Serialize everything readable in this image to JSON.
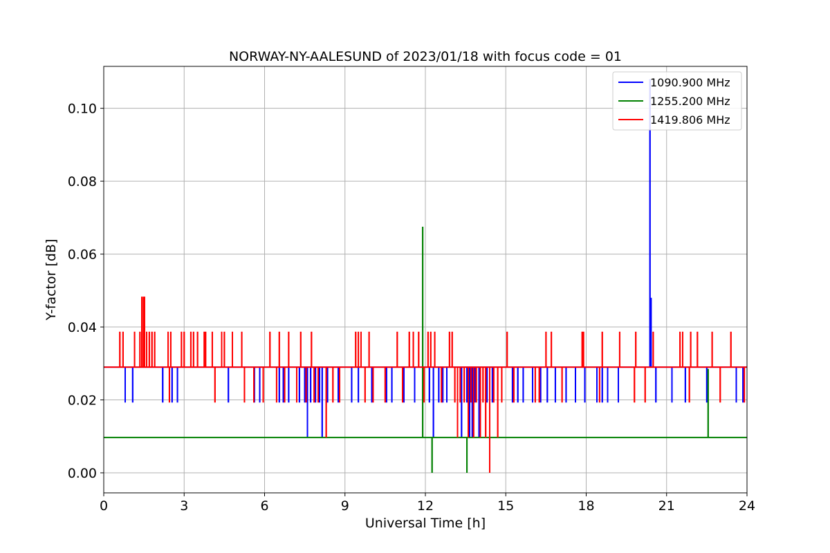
{
  "chart_data": {
    "type": "line",
    "title": "NORWAY-NY-AALESUND of 2023/01/18 with focus code = 01",
    "xlabel": "Universal Time [h]",
    "ylabel": "Y-factor [dB]",
    "xlim": [
      0,
      24
    ],
    "ylim": [
      -0.0055,
      0.1115
    ],
    "x_ticks": [
      0,
      3,
      6,
      9,
      12,
      15,
      18,
      21,
      24
    ],
    "x_tick_labels": [
      "0",
      "3",
      "6",
      "9",
      "12",
      "15",
      "18",
      "21",
      "24"
    ],
    "y_ticks": [
      0.0,
      0.02,
      0.04,
      0.06,
      0.08,
      0.1
    ],
    "y_tick_labels": [
      "0.00",
      "0.02",
      "0.04",
      "0.06",
      "0.08",
      "0.10"
    ],
    "grid": true,
    "legend_position": "top-right",
    "series": [
      {
        "name": "1090.900 MHz",
        "color": "#0000ff",
        "baseline": 0.029,
        "spikes": [
          [
            0.8,
            0.0193
          ],
          [
            1.08,
            0.0193
          ],
          [
            2.2,
            0.0193
          ],
          [
            2.55,
            0.0193
          ],
          [
            2.75,
            0.0193
          ],
          [
            4.65,
            0.0193
          ],
          [
            5.62,
            0.0193
          ],
          [
            5.82,
            0.0193
          ],
          [
            6.55,
            0.0193
          ],
          [
            6.7,
            0.0193
          ],
          [
            6.9,
            0.0193
          ],
          [
            7.3,
            0.0193
          ],
          [
            7.5,
            0.0193
          ],
          [
            7.6,
            0.0097
          ],
          [
            7.72,
            0.0193
          ],
          [
            7.9,
            0.0193
          ],
          [
            8.05,
            0.0193
          ],
          [
            8.15,
            0.0097
          ],
          [
            8.35,
            0.0193
          ],
          [
            8.75,
            0.0193
          ],
          [
            9.25,
            0.0193
          ],
          [
            9.5,
            0.0193
          ],
          [
            10.0,
            0.0193
          ],
          [
            10.55,
            0.0193
          ],
          [
            10.75,
            0.0193
          ],
          [
            11.2,
            0.0193
          ],
          [
            11.6,
            0.0193
          ],
          [
            12.15,
            0.0193
          ],
          [
            12.3,
            0.0097
          ],
          [
            12.5,
            0.0193
          ],
          [
            12.65,
            0.0193
          ],
          [
            12.8,
            0.0193
          ],
          [
            13.35,
            0.0097
          ],
          [
            13.55,
            0.0193
          ],
          [
            13.65,
            0.0097
          ],
          [
            13.75,
            0.0097
          ],
          [
            13.85,
            0.0193
          ],
          [
            14.0,
            0.0097
          ],
          [
            14.3,
            0.0193
          ],
          [
            14.5,
            0.0193
          ],
          [
            15.25,
            0.0193
          ],
          [
            15.45,
            0.0193
          ],
          [
            15.65,
            0.0193
          ],
          [
            16.0,
            0.0193
          ],
          [
            16.3,
            0.0193
          ],
          [
            16.55,
            0.0193
          ],
          [
            16.85,
            0.0193
          ],
          [
            17.25,
            0.0193
          ],
          [
            17.6,
            0.0193
          ],
          [
            17.95,
            0.0193
          ],
          [
            18.4,
            0.0193
          ],
          [
            18.6,
            0.0193
          ],
          [
            18.8,
            0.0193
          ],
          [
            19.2,
            0.0193
          ],
          [
            20.38,
            0.108
          ],
          [
            20.42,
            0.048
          ],
          [
            20.6,
            0.0193
          ],
          [
            21.2,
            0.0193
          ],
          [
            21.7,
            0.0193
          ],
          [
            22.5,
            0.0193
          ],
          [
            23.6,
            0.0193
          ],
          [
            23.85,
            0.0193
          ]
        ]
      },
      {
        "name": "1255.200 MHz",
        "color": "#008000",
        "baseline": 0.0097,
        "spikes": [
          [
            11.9,
            0.0675
          ],
          [
            12.25,
            0.0
          ],
          [
            13.55,
            0.0
          ],
          [
            22.55,
            0.0285
          ]
        ]
      },
      {
        "name": "1419.806 MHz",
        "color": "#ff0000",
        "baseline": 0.029,
        "spikes": [
          [
            0.6,
            0.0387
          ],
          [
            0.72,
            0.0387
          ],
          [
            1.15,
            0.0387
          ],
          [
            1.35,
            0.0387
          ],
          [
            1.42,
            0.0483
          ],
          [
            1.48,
            0.0483
          ],
          [
            1.52,
            0.0483
          ],
          [
            1.6,
            0.0387
          ],
          [
            1.7,
            0.0387
          ],
          [
            1.8,
            0.0387
          ],
          [
            1.9,
            0.0387
          ],
          [
            2.4,
            0.0387
          ],
          [
            2.45,
            0.0193
          ],
          [
            2.5,
            0.0387
          ],
          [
            2.9,
            0.0387
          ],
          [
            3.0,
            0.0387
          ],
          [
            3.25,
            0.0387
          ],
          [
            3.35,
            0.0387
          ],
          [
            3.5,
            0.0387
          ],
          [
            3.75,
            0.0387
          ],
          [
            3.8,
            0.0387
          ],
          [
            4.05,
            0.0387
          ],
          [
            4.15,
            0.0193
          ],
          [
            4.4,
            0.0387
          ],
          [
            4.5,
            0.0387
          ],
          [
            4.8,
            0.0387
          ],
          [
            5.15,
            0.0387
          ],
          [
            5.25,
            0.0193
          ],
          [
            5.6,
            0.0193
          ],
          [
            5.95,
            0.0193
          ],
          [
            6.2,
            0.0387
          ],
          [
            6.45,
            0.0193
          ],
          [
            6.55,
            0.0387
          ],
          [
            6.75,
            0.0193
          ],
          [
            6.9,
            0.0387
          ],
          [
            7.2,
            0.0193
          ],
          [
            7.35,
            0.0387
          ],
          [
            7.55,
            0.0193
          ],
          [
            7.75,
            0.0387
          ],
          [
            7.85,
            0.0193
          ],
          [
            8.0,
            0.0193
          ],
          [
            8.3,
            0.0097
          ],
          [
            8.55,
            0.0193
          ],
          [
            8.8,
            0.0193
          ],
          [
            9.4,
            0.0387
          ],
          [
            9.5,
            0.0387
          ],
          [
            9.6,
            0.0387
          ],
          [
            9.75,
            0.0193
          ],
          [
            9.9,
            0.0387
          ],
          [
            10.05,
            0.0193
          ],
          [
            10.5,
            0.0193
          ],
          [
            10.95,
            0.0387
          ],
          [
            11.15,
            0.0193
          ],
          [
            11.4,
            0.0387
          ],
          [
            11.55,
            0.0387
          ],
          [
            11.75,
            0.0387
          ],
          [
            11.95,
            0.0193
          ],
          [
            12.1,
            0.0387
          ],
          [
            12.2,
            0.0387
          ],
          [
            12.35,
            0.0387
          ],
          [
            12.6,
            0.0193
          ],
          [
            12.9,
            0.0387
          ],
          [
            13.0,
            0.0387
          ],
          [
            13.1,
            0.0193
          ],
          [
            13.2,
            0.0097
          ],
          [
            13.3,
            0.0193
          ],
          [
            13.45,
            0.0193
          ],
          [
            13.6,
            0.0097
          ],
          [
            13.7,
            0.0193
          ],
          [
            13.8,
            0.0097
          ],
          [
            13.9,
            0.0193
          ],
          [
            14.05,
            0.0097
          ],
          [
            14.15,
            0.0193
          ],
          [
            14.25,
            0.0097
          ],
          [
            14.4,
            0.0
          ],
          [
            14.55,
            0.0193
          ],
          [
            14.7,
            0.0097
          ],
          [
            14.85,
            0.0193
          ],
          [
            15.05,
            0.0387
          ],
          [
            15.3,
            0.0193
          ],
          [
            16.1,
            0.0193
          ],
          [
            16.25,
            0.0193
          ],
          [
            16.5,
            0.0387
          ],
          [
            16.7,
            0.0387
          ],
          [
            17.1,
            0.0193
          ],
          [
            17.85,
            0.0387
          ],
          [
            17.9,
            0.0387
          ],
          [
            18.5,
            0.0193
          ],
          [
            18.6,
            0.0387
          ],
          [
            19.25,
            0.0387
          ],
          [
            19.8,
            0.0193
          ],
          [
            19.85,
            0.0387
          ],
          [
            20.2,
            0.0193
          ],
          [
            20.5,
            0.0387
          ],
          [
            21.5,
            0.0387
          ],
          [
            21.6,
            0.0387
          ],
          [
            21.85,
            0.0193
          ],
          [
            21.9,
            0.0387
          ],
          [
            22.15,
            0.0387
          ],
          [
            22.7,
            0.0387
          ],
          [
            23.0,
            0.0193
          ],
          [
            23.4,
            0.0387
          ],
          [
            23.9,
            0.0193
          ]
        ]
      }
    ]
  }
}
